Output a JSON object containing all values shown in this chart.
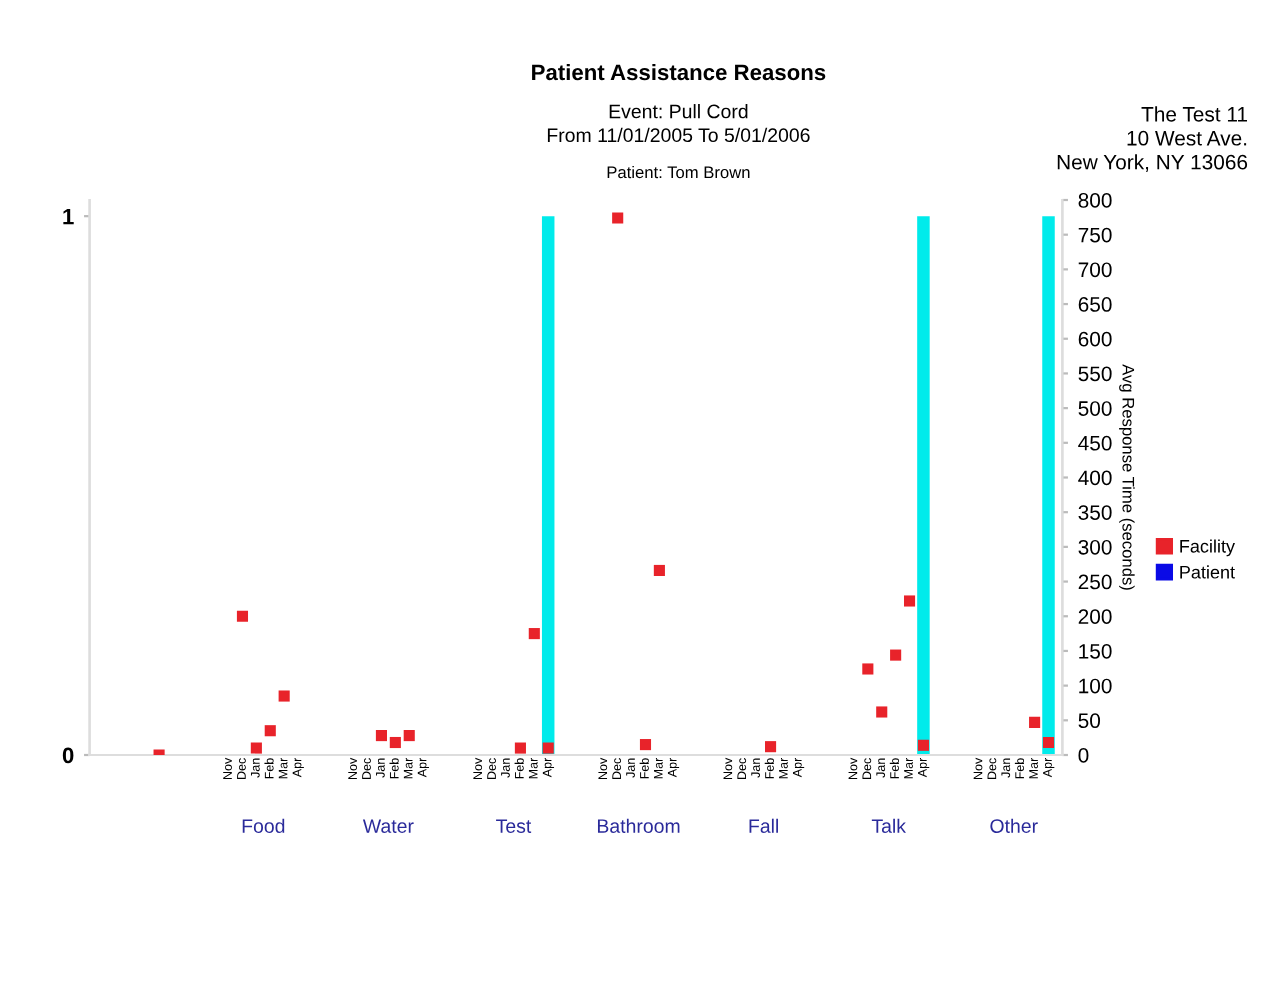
{
  "chart_data": {
    "type": "bar",
    "title": "Patient Assistance Reasons",
    "subtitle": "Event: Pull Cord\nFrom 11/01/2005 To 5/01/2006",
    "annotations": [
      "Patient: Tom Brown",
      "The Test 11\n10 West Ave.\nNew York, NY 13066",
      "Food",
      "Water",
      "Test",
      "Bathroom",
      "Fall",
      "Talk",
      "Other"
    ],
    "y2label": "Avg Response Time (seconds)",
    "categories": [
      null,
      null,
      null,
      null,
      null,
      null,
      null,
      null,
      null,
      "Nov",
      "Dec",
      "Jan",
      "Feb",
      "Mar",
      "Apr",
      null,
      null,
      null,
      "Nov",
      "Dec",
      "Jan",
      "Feb",
      "Mar",
      "Apr",
      null,
      null,
      null,
      "Nov",
      "Dec",
      "Jan",
      "Feb",
      "Mar",
      "Apr",
      null,
      null,
      null,
      "Nov",
      "Dec",
      "Jan",
      "Feb",
      "Mar",
      "Apr",
      null,
      null,
      null,
      "Nov",
      "Dec",
      "Jan",
      "Feb",
      "Mar",
      "Apr",
      null,
      null,
      null,
      "Nov",
      "Dec",
      "Jan",
      "Feb",
      "Mar",
      "Apr",
      null,
      null,
      null,
      "Nov",
      "Dec",
      "Jan",
      "Feb",
      "Mar",
      "Apr"
    ],
    "series": [
      {
        "color": "#00ebeb",
        "values": [
          null,
          null,
          null,
          null,
          null,
          null,
          null,
          null,
          null,
          null,
          null,
          null,
          null,
          null,
          null,
          null,
          null,
          null,
          null,
          null,
          null,
          null,
          null,
          null,
          null,
          null,
          null,
          null,
          null,
          null,
          null,
          null,
          1,
          null,
          null,
          null,
          null,
          null,
          null,
          null,
          null,
          null,
          null,
          null,
          null,
          null,
          null,
          null,
          null,
          null,
          null,
          null,
          null,
          null,
          null,
          null,
          null,
          null,
          null,
          1,
          null,
          null,
          null,
          null,
          null,
          null,
          null,
          null,
          1
        ]
      },
      {
        "type": "scatter",
        "axis": "y2",
        "name": "Facility",
        "color": "#e8232a",
        "values": [
          null,
          null,
          null,
          null,
          0,
          null,
          null,
          null,
          null,
          null,
          200,
          10,
          35,
          85,
          null,
          null,
          null,
          null,
          null,
          null,
          28,
          18,
          28,
          null,
          null,
          null,
          null,
          null,
          null,
          null,
          10,
          175,
          10,
          null,
          null,
          null,
          null,
          774,
          null,
          15,
          266,
          null,
          null,
          null,
          null,
          null,
          null,
          null,
          12,
          null,
          null,
          null,
          null,
          null,
          null,
          124,
          62,
          144,
          222,
          14,
          null,
          null,
          null,
          null,
          null,
          null,
          null,
          47,
          18
        ]
      },
      {
        "type": "scatter",
        "axis": "y2",
        "name": "Patient",
        "color": "#0a0ae6",
        "values": [
          null,
          null,
          null,
          null,
          null,
          null,
          null,
          null,
          null,
          null,
          null,
          null,
          null,
          null,
          null,
          null,
          null,
          null,
          null,
          null,
          null,
          null,
          null,
          null,
          null,
          null,
          null,
          null,
          null,
          null,
          null,
          null,
          null,
          null,
          null,
          null,
          null,
          null,
          null,
          null,
          null,
          null,
          null,
          null,
          null,
          null,
          null,
          null,
          null,
          null,
          null,
          null,
          null,
          null,
          null,
          null,
          null,
          null,
          null,
          null,
          null,
          null,
          null,
          null,
          null,
          null,
          null,
          null,
          null
        ]
      }
    ],
    "ylim": [
      0,
      1.03
    ],
    "yticks": [
      0,
      1
    ],
    "y2lim": [
      0,
      800
    ],
    "y2ticks": [
      0,
      50,
      100,
      150,
      200,
      250,
      300,
      350,
      400,
      450,
      500,
      550,
      600,
      650,
      700,
      750,
      800
    ],
    "legend": "right",
    "grid": false,
    "marker": "square"
  }
}
